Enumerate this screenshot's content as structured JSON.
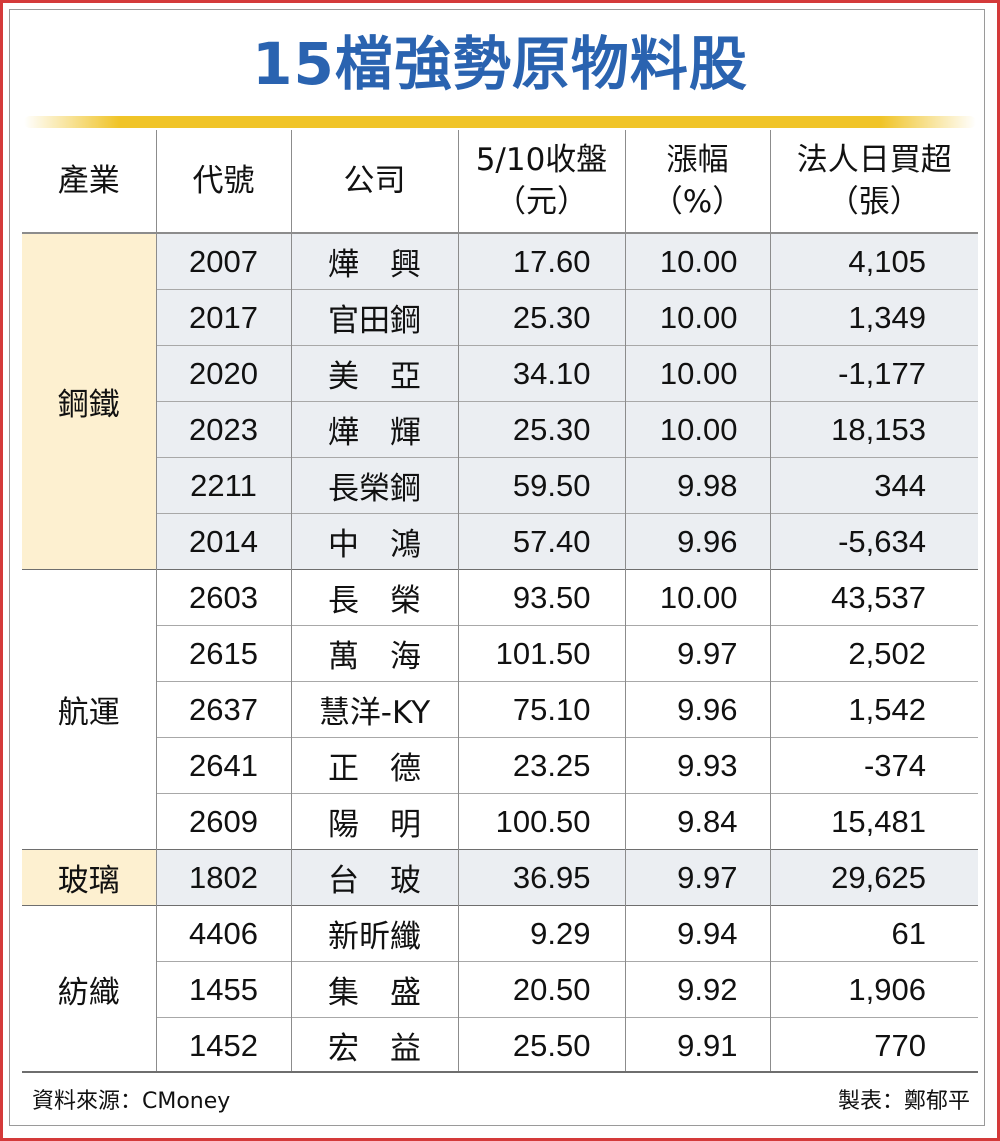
{
  "title": "15檔強勢原物料股",
  "headers": {
    "industry": "產業",
    "code": "代號",
    "company": "公司",
    "close_line1": "5/10收盤",
    "close_line2": "（元）",
    "change_line1": "漲幅",
    "change_line2": "（%）",
    "net_line1": "法人日買超",
    "net_line2": "（張）"
  },
  "groups": [
    {
      "industry": "鋼鐵",
      "rows": [
        {
          "code": "2007",
          "company": "燁　興",
          "close": "17.60",
          "change": "10.00",
          "net": "4,105"
        },
        {
          "code": "2017",
          "company": "官田鋼",
          "close": "25.30",
          "change": "10.00",
          "net": "1,349"
        },
        {
          "code": "2020",
          "company": "美　亞",
          "close": "34.10",
          "change": "10.00",
          "net": "-1,177"
        },
        {
          "code": "2023",
          "company": "燁　輝",
          "close": "25.30",
          "change": "10.00",
          "net": "18,153"
        },
        {
          "code": "2211",
          "company": "長榮鋼",
          "close": "59.50",
          "change": "9.98",
          "net": "344"
        },
        {
          "code": "2014",
          "company": "中　鴻",
          "close": "57.40",
          "change": "9.96",
          "net": "-5,634"
        }
      ]
    },
    {
      "industry": "航運",
      "rows": [
        {
          "code": "2603",
          "company": "長　榮",
          "close": "93.50",
          "change": "10.00",
          "net": "43,537"
        },
        {
          "code": "2615",
          "company": "萬　海",
          "close": "101.50",
          "change": "9.97",
          "net": "2,502"
        },
        {
          "code": "2637",
          "company": "慧洋-KY",
          "close": "75.10",
          "change": "9.96",
          "net": "1,542"
        },
        {
          "code": "2641",
          "company": "正　德",
          "close": "23.25",
          "change": "9.93",
          "net": "-374"
        },
        {
          "code": "2609",
          "company": "陽　明",
          "close": "100.50",
          "change": "9.84",
          "net": "15,481"
        }
      ]
    },
    {
      "industry": "玻璃",
      "rows": [
        {
          "code": "1802",
          "company": "台　玻",
          "close": "36.95",
          "change": "9.97",
          "net": "29,625"
        }
      ]
    },
    {
      "industry": "紡織",
      "rows": [
        {
          "code": "4406",
          "company": "新昕纖",
          "close": "9.29",
          "change": "9.94",
          "net": "61"
        },
        {
          "code": "1455",
          "company": "集　盛",
          "close": "20.50",
          "change": "9.92",
          "net": "1,906"
        },
        {
          "code": "1452",
          "company": "宏　益",
          "close": "25.50",
          "change": "9.91",
          "net": "770"
        }
      ]
    }
  ],
  "footer": {
    "source": "資料來源：CMoney",
    "maker": "製表：鄭郁平"
  },
  "colors": {
    "title": "#2a63b0",
    "rule": "#f0c428",
    "industry_shade": "#fdf0d0",
    "row_shade": "#ebeef2",
    "frame": "#d43a3a"
  }
}
